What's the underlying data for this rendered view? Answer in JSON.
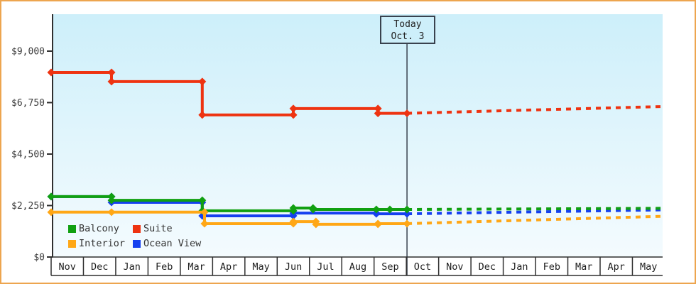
{
  "window": {
    "frame_color": "#eda54f",
    "background": "#ffffff"
  },
  "today": {
    "line1": "Today",
    "line2": "Oct. 3"
  },
  "legend": {
    "items": [
      {
        "label": "Balcony",
        "color": "#11a011"
      },
      {
        "label": "Suite",
        "color": "#ee3311"
      },
      {
        "label": "Interior",
        "color": "#ffa716"
      },
      {
        "label": "Ocean View",
        "color": "#1540f0"
      }
    ]
  },
  "chart_data": {
    "type": "line",
    "title": "",
    "ylabel": "",
    "xlabel": "",
    "ylim": [
      0,
      9000
    ],
    "grid": false,
    "legend_position": "bottom-left",
    "plot_background": {
      "top": "#cdeffa",
      "bottom": "#f4fbfe"
    },
    "axis_color": "#2f2f2f",
    "today_line_color": "#39424e",
    "y_axis": {
      "tick_labels": [
        "$0",
        "$2,250",
        "$4,500",
        "$6,750",
        "$9,000"
      ],
      "tick_values": [
        0,
        2250,
        4500,
        6750,
        9000
      ]
    },
    "x_axis": {
      "month_labels": [
        "Nov",
        "Dec",
        "Jan",
        "Feb",
        "Mar",
        "Apr",
        "May",
        "Jun",
        "Jul",
        "Aug",
        "Sep",
        "Oct",
        "Nov",
        "Dec",
        "Jan",
        "Feb",
        "Mar",
        "Apr",
        "May"
      ]
    },
    "annotation": {
      "label": "Today",
      "date": "Oct. 3",
      "month_position": 11.02
    },
    "series": [
      {
        "name": "Ocean View",
        "color": "#1540f0",
        "solid": [
          [
            0,
            2640
          ],
          [
            1.87,
            2640
          ],
          [
            1.87,
            2390
          ],
          [
            4.68,
            2390
          ],
          [
            4.68,
            1800
          ],
          [
            7.5,
            1800
          ],
          [
            7.5,
            1920
          ],
          [
            10.07,
            1920
          ],
          [
            10.07,
            1890
          ],
          [
            11.02,
            1890
          ]
        ],
        "dashed": [
          [
            11.02,
            1890
          ],
          [
            18.94,
            2060
          ]
        ]
      },
      {
        "name": "Balcony",
        "color": "#11a011",
        "solid": [
          [
            0,
            2640
          ],
          [
            1.87,
            2640
          ],
          [
            1.87,
            2480
          ],
          [
            4.68,
            2480
          ],
          [
            4.68,
            2020
          ],
          [
            7.5,
            2020
          ],
          [
            7.5,
            2140
          ],
          [
            8.11,
            2140
          ],
          [
            8.11,
            2080
          ],
          [
            10.07,
            2080
          ],
          [
            10.49,
            2080
          ],
          [
            11.02,
            2080
          ]
        ],
        "dashed": [
          [
            11.02,
            2080
          ],
          [
            18.94,
            2130
          ]
        ]
      },
      {
        "name": "Interior",
        "color": "#ffa716",
        "solid": [
          [
            0,
            1960
          ],
          [
            1.87,
            1960
          ],
          [
            4.75,
            1960
          ],
          [
            4.75,
            1460
          ],
          [
            7.5,
            1460
          ],
          [
            7.5,
            1550
          ],
          [
            8.2,
            1550
          ],
          [
            8.2,
            1430
          ],
          [
            10.12,
            1430
          ],
          [
            10.12,
            1460
          ],
          [
            11.02,
            1460
          ]
        ],
        "dashed": [
          [
            11.02,
            1460
          ],
          [
            18.94,
            1780
          ]
        ]
      },
      {
        "name": "Suite",
        "color": "#ee3311",
        "solid": [
          [
            0,
            8070
          ],
          [
            1.87,
            8070
          ],
          [
            1.87,
            7670
          ],
          [
            4.68,
            7670
          ],
          [
            4.68,
            6210
          ],
          [
            7.5,
            6210
          ],
          [
            7.5,
            6490
          ],
          [
            10.12,
            6490
          ],
          [
            10.12,
            6280
          ],
          [
            11.02,
            6280
          ]
        ],
        "dashed": [
          [
            11.02,
            6280
          ],
          [
            18.94,
            6580
          ]
        ]
      }
    ]
  }
}
